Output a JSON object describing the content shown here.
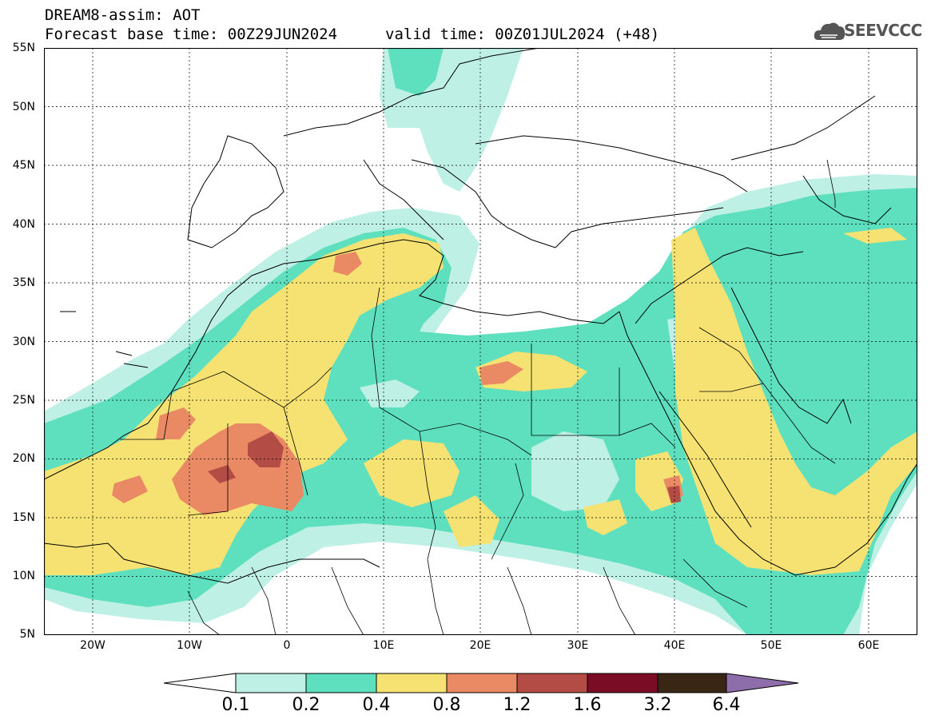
{
  "header": {
    "line1": "DREAM8-assim: AOT",
    "line2": "Forecast base time: 00Z29JUN2024",
    "line3": "valid time: 00Z01JUL2024 (+48)"
  },
  "logo": {
    "text": "SEEVCCC",
    "icon": "cloud-icon"
  },
  "map": {
    "variable": "AOT",
    "lat_labels": [
      "55N",
      "50N",
      "45N",
      "40N",
      "35N",
      "30N",
      "25N",
      "20N",
      "15N",
      "10N",
      "5N"
    ],
    "lon_labels": [
      "20W",
      "10W",
      "0",
      "10E",
      "20E",
      "30E",
      "40E",
      "50E",
      "60E"
    ],
    "colors": {
      "c01": "#bff0e6",
      "c02": "#5ee0be",
      "c04": "#f6e273",
      "c08": "#ea8a64",
      "c12": "#b24c44",
      "c16": "#7a0c25",
      "c32": "#3a2614",
      "c64": "#8e6eaa",
      "coast": "#000000"
    }
  },
  "colorbar": {
    "labels": [
      "0.1",
      "0.2",
      "0.4",
      "0.8",
      "1.2",
      "1.6",
      "3.2",
      "6.4"
    ],
    "colors": [
      "#bff0e6",
      "#5ee0be",
      "#f6e273",
      "#ea8a64",
      "#b24c44",
      "#7a0c25",
      "#3a2614",
      "#8e6eaa"
    ]
  }
}
